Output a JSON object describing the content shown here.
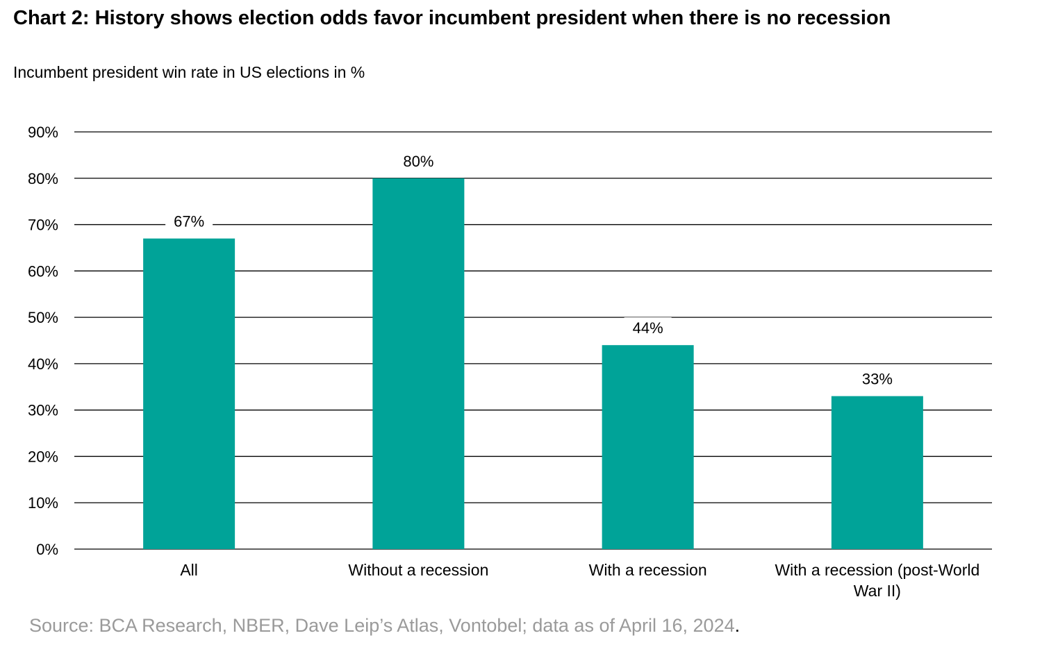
{
  "title": "Chart 2: History shows election odds favor incumbent president when there is no recession",
  "subtitle": "Incumbent president win rate in US elections in %",
  "source": "Source: BCA Research, NBER, Dave Leip’s Atlas, Vontobel; data as of April 16, 2024",
  "source_end": ".",
  "chart_data": {
    "type": "bar",
    "categories": [
      "All",
      "Without a recession",
      "With a recession",
      "With a recession (post-World War II)"
    ],
    "values": [
      67,
      80,
      44,
      33
    ],
    "data_labels": [
      "67%",
      "80%",
      "44%",
      "33%"
    ],
    "ylim": [
      0,
      90
    ],
    "yticks": [
      0,
      10,
      20,
      30,
      40,
      50,
      60,
      70,
      80,
      90
    ],
    "ytick_labels": [
      "0%",
      "10%",
      "20%",
      "30%",
      "40%",
      "50%",
      "60%",
      "70%",
      "80%",
      "90%"
    ],
    "grid": true,
    "bar_color": "#00A398",
    "xlabel": "",
    "ylabel": ""
  }
}
